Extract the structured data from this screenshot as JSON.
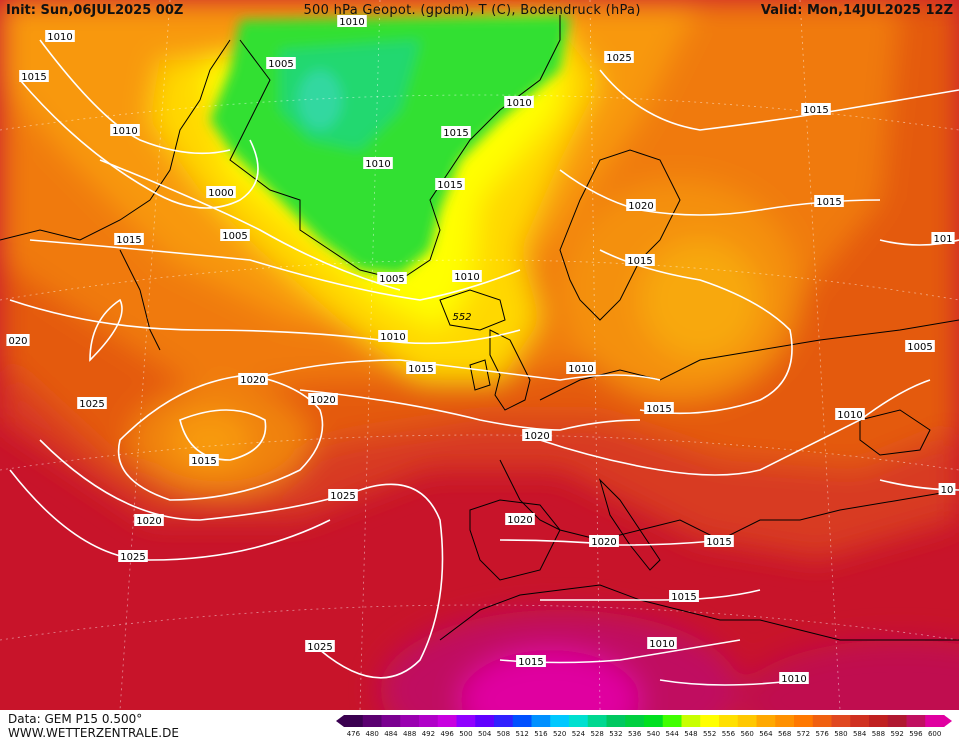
{
  "header": {
    "init": "Init: Sun,06JUL2025 00Z",
    "title": "500 hPa Geopot. (gpdm), T (C), Bodendruck (hPa)",
    "valid": "Valid: Mon,14JUL2025 12Z"
  },
  "footer": {
    "data_source": "Data: GEM P15 0.500°",
    "website": "WWW.WETTERZENTRALE.DE"
  },
  "colorbar": {
    "ticks": [
      "476",
      "480",
      "484",
      "488",
      "492",
      "496",
      "500",
      "504",
      "508",
      "512",
      "516",
      "520",
      "524",
      "528",
      "532",
      "536",
      "540",
      "544",
      "548",
      "552",
      "556",
      "560",
      "564",
      "568",
      "572",
      "576",
      "580",
      "584",
      "588",
      "592",
      "596",
      "600"
    ],
    "colors": [
      "#3a0050",
      "#5a0070",
      "#7a0090",
      "#9a00b0",
      "#b000c8",
      "#c800e0",
      "#9000ff",
      "#6000ff",
      "#3020ff",
      "#0050ff",
      "#0090ff",
      "#00c8ff",
      "#00e0d0",
      "#00d890",
      "#00c860",
      "#00d040",
      "#00e020",
      "#40ff00",
      "#c8ff00",
      "#ffff00",
      "#ffe000",
      "#ffc800",
      "#ffa800",
      "#ff9000",
      "#ff7800",
      "#f06010",
      "#e04820",
      "#d03020",
      "#c02020",
      "#b01830",
      "#c01060",
      "#e000a0"
    ]
  },
  "isobar_labels": [
    {
      "text": "1010",
      "key": "l1"
    },
    {
      "text": "1015",
      "key": "l2"
    },
    {
      "text": "1010",
      "key": "l3"
    },
    {
      "text": "1000",
      "key": "l4"
    },
    {
      "text": "1005",
      "key": "l5"
    },
    {
      "text": "1015",
      "key": "l6"
    },
    {
      "text": "1020",
      "key": "l7"
    },
    {
      "text": "1025",
      "key": "l8"
    },
    {
      "text": "1020",
      "key": "l9"
    },
    {
      "text": "1015",
      "key": "l10"
    },
    {
      "text": "1020",
      "key": "l11"
    },
    {
      "text": "1025",
      "key": "l12"
    },
    {
      "text": "1020",
      "key": "l13"
    },
    {
      "text": "1025",
      "key": "l14"
    },
    {
      "text": "1025",
      "key": "l15"
    },
    {
      "text": "1005",
      "key": "l16"
    },
    {
      "text": "1010",
      "key": "l17"
    },
    {
      "text": "1015",
      "key": "l18"
    },
    {
      "text": "1010",
      "key": "l19"
    },
    {
      "text": "1015",
      "key": "l20"
    },
    {
      "text": "1005",
      "key": "l21"
    },
    {
      "text": "1010",
      "key": "l22"
    },
    {
      "text": "1010",
      "key": "l23"
    },
    {
      "text": "1015",
      "key": "l24"
    },
    {
      "text": "1010",
      "key": "l25"
    },
    {
      "text": "1020",
      "key": "l26"
    },
    {
      "text": "1025",
      "key": "l27"
    },
    {
      "text": "1015",
      "key": "l28"
    },
    {
      "text": "1020",
      "key": "l29"
    },
    {
      "text": "1015",
      "key": "l30"
    },
    {
      "text": "1015",
      "key": "l31"
    },
    {
      "text": "1020",
      "key": "l32"
    },
    {
      "text": "1015",
      "key": "l33"
    },
    {
      "text": "1015",
      "key": "l34"
    },
    {
      "text": "1020",
      "key": "l35"
    },
    {
      "text": "1015",
      "key": "l36"
    },
    {
      "text": "1010",
      "key": "l37"
    },
    {
      "text": "1015",
      "key": "l38"
    },
    {
      "text": "1010",
      "key": "l39"
    },
    {
      "text": "1015",
      "key": "l40"
    },
    {
      "text": "1005",
      "key": "l41"
    },
    {
      "text": "1010",
      "key": "l42"
    },
    {
      "text": "1015",
      "key": "l43"
    },
    {
      "text": "101",
      "key": "l44"
    },
    {
      "text": "10",
      "key": "l45"
    },
    {
      "text": "020",
      "key": "l46"
    },
    {
      "text": "1010",
      "key": "l47"
    }
  ],
  "geopotential_label": "552"
}
